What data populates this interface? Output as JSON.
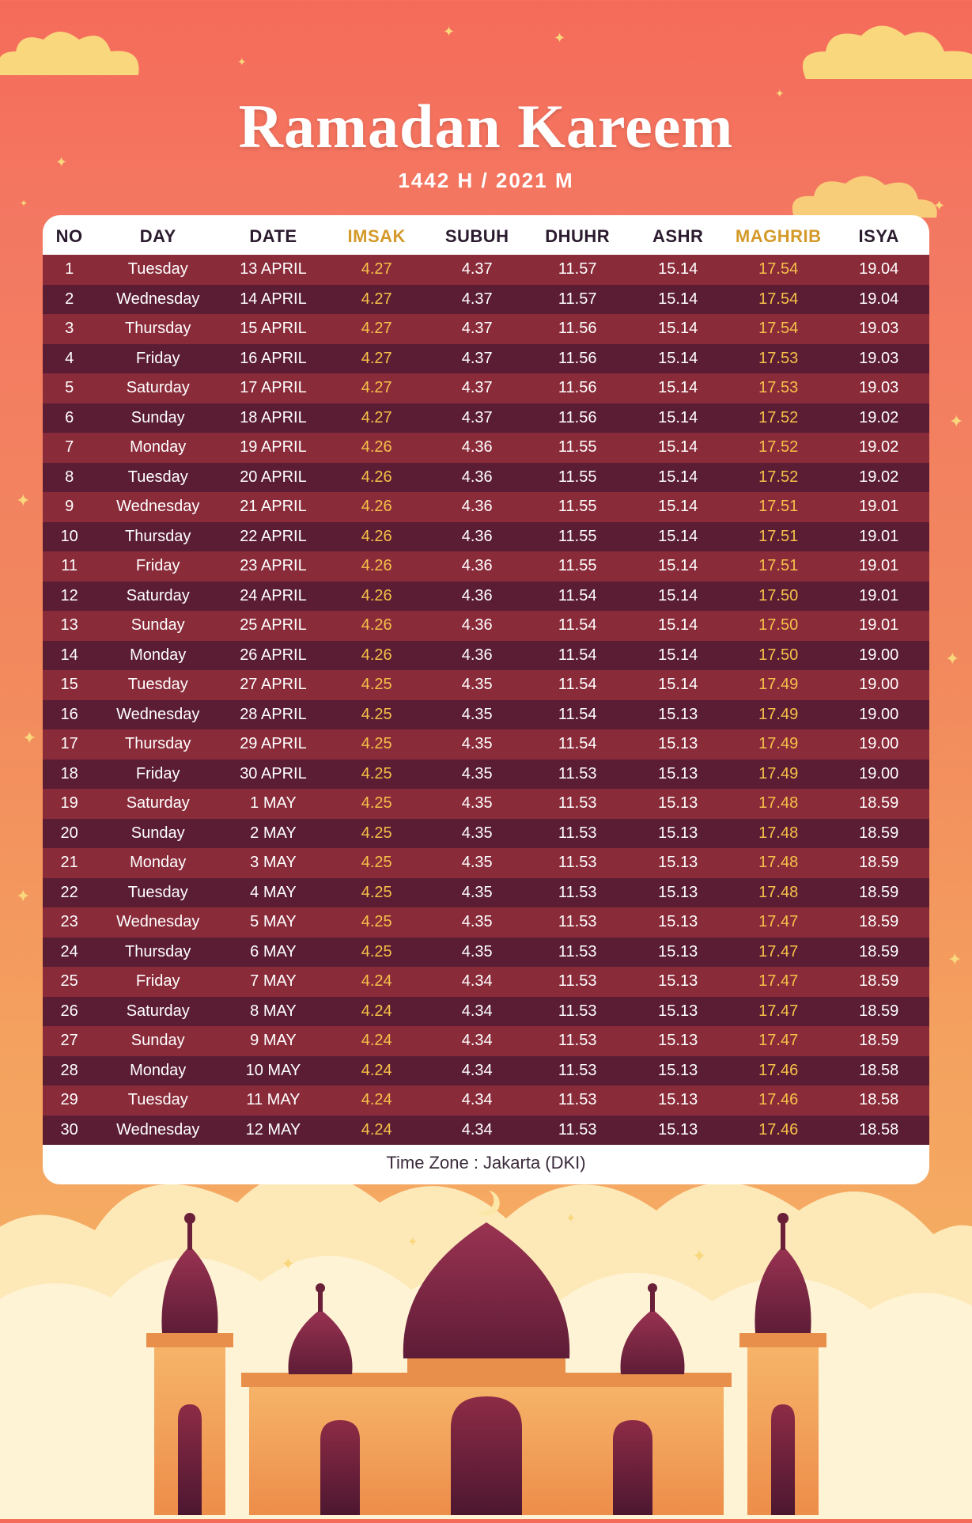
{
  "title": "Ramadan Kareem",
  "subtitle": "1442 H / 2021 M",
  "footer": "Time Zone : Jakarta (DKI)",
  "colors": {
    "bg_top": "#f56b5a",
    "bg_bottom": "#f7b968",
    "star": "#f9d77d",
    "cloud": "#f9d77d",
    "title": "#ffffff",
    "header_text": "#2b1b2e",
    "header_highlight": "#d49a2a",
    "row_odd_bg": "#8a2b3a",
    "row_even_bg": "#5b1d34",
    "cell_text": "#ffffff",
    "cell_highlight": "#f6c049",
    "mosque_wall": "#f29c5a",
    "mosque_dome": "#7a2340"
  },
  "columns": [
    {
      "key": "no",
      "label": "NO",
      "highlight": false,
      "cls": "c-no"
    },
    {
      "key": "day",
      "label": "DAY",
      "highlight": false,
      "cls": "c-day"
    },
    {
      "key": "date",
      "label": "DATE",
      "highlight": false,
      "cls": "c-date"
    },
    {
      "key": "imsak",
      "label": "IMSAK",
      "highlight": true,
      "cls": "c-t"
    },
    {
      "key": "subuh",
      "label": "SUBUH",
      "highlight": false,
      "cls": "c-t"
    },
    {
      "key": "dhuhr",
      "label": "DHUHR",
      "highlight": false,
      "cls": "c-t"
    },
    {
      "key": "ashr",
      "label": "ASHR",
      "highlight": false,
      "cls": "c-t"
    },
    {
      "key": "maghrib",
      "label": "MAGHRIB",
      "highlight": true,
      "cls": "c-t"
    },
    {
      "key": "isya",
      "label": "ISYA",
      "highlight": false,
      "cls": "c-t"
    }
  ],
  "rows": [
    {
      "no": "1",
      "day": "Tuesday",
      "date": "13 APRIL",
      "imsak": "4.27",
      "subuh": "4.37",
      "dhuhr": "11.57",
      "ashr": "15.14",
      "maghrib": "17.54",
      "isya": "19.04"
    },
    {
      "no": "2",
      "day": "Wednesday",
      "date": "14 APRIL",
      "imsak": "4.27",
      "subuh": "4.37",
      "dhuhr": "11.57",
      "ashr": "15.14",
      "maghrib": "17.54",
      "isya": "19.04"
    },
    {
      "no": "3",
      "day": "Thursday",
      "date": "15 APRIL",
      "imsak": "4.27",
      "subuh": "4.37",
      "dhuhr": "11.56",
      "ashr": "15.14",
      "maghrib": "17.54",
      "isya": "19.03"
    },
    {
      "no": "4",
      "day": "Friday",
      "date": "16 APRIL",
      "imsak": "4.27",
      "subuh": "4.37",
      "dhuhr": "11.56",
      "ashr": "15.14",
      "maghrib": "17.53",
      "isya": "19.03"
    },
    {
      "no": "5",
      "day": "Saturday",
      "date": "17 APRIL",
      "imsak": "4.27",
      "subuh": "4.37",
      "dhuhr": "11.56",
      "ashr": "15.14",
      "maghrib": "17.53",
      "isya": "19.03"
    },
    {
      "no": "6",
      "day": "Sunday",
      "date": "18 APRIL",
      "imsak": "4.27",
      "subuh": "4.37",
      "dhuhr": "11.56",
      "ashr": "15.14",
      "maghrib": "17.52",
      "isya": "19.02"
    },
    {
      "no": "7",
      "day": "Monday",
      "date": "19 APRIL",
      "imsak": "4.26",
      "subuh": "4.36",
      "dhuhr": "11.55",
      "ashr": "15.14",
      "maghrib": "17.52",
      "isya": "19.02"
    },
    {
      "no": "8",
      "day": "Tuesday",
      "date": "20 APRIL",
      "imsak": "4.26",
      "subuh": "4.36",
      "dhuhr": "11.55",
      "ashr": "15.14",
      "maghrib": "17.52",
      "isya": "19.02"
    },
    {
      "no": "9",
      "day": "Wednesday",
      "date": "21 APRIL",
      "imsak": "4.26",
      "subuh": "4.36",
      "dhuhr": "11.55",
      "ashr": "15.14",
      "maghrib": "17.51",
      "isya": "19.01"
    },
    {
      "no": "10",
      "day": "Thursday",
      "date": "22 APRIL",
      "imsak": "4.26",
      "subuh": "4.36",
      "dhuhr": "11.55",
      "ashr": "15.14",
      "maghrib": "17.51",
      "isya": "19.01"
    },
    {
      "no": "11",
      "day": "Friday",
      "date": "23 APRIL",
      "imsak": "4.26",
      "subuh": "4.36",
      "dhuhr": "11.55",
      "ashr": "15.14",
      "maghrib": "17.51",
      "isya": "19.01"
    },
    {
      "no": "12",
      "day": "Saturday",
      "date": "24 APRIL",
      "imsak": "4.26",
      "subuh": "4.36",
      "dhuhr": "11.54",
      "ashr": "15.14",
      "maghrib": "17.50",
      "isya": "19.01"
    },
    {
      "no": "13",
      "day": "Sunday",
      "date": "25 APRIL",
      "imsak": "4.26",
      "subuh": "4.36",
      "dhuhr": "11.54",
      "ashr": "15.14",
      "maghrib": "17.50",
      "isya": "19.01"
    },
    {
      "no": "14",
      "day": "Monday",
      "date": "26 APRIL",
      "imsak": "4.26",
      "subuh": "4.36",
      "dhuhr": "11.54",
      "ashr": "15.14",
      "maghrib": "17.50",
      "isya": "19.00"
    },
    {
      "no": "15",
      "day": "Tuesday",
      "date": "27 APRIL",
      "imsak": "4.25",
      "subuh": "4.35",
      "dhuhr": "11.54",
      "ashr": "15.14",
      "maghrib": "17.49",
      "isya": "19.00"
    },
    {
      "no": "16",
      "day": "Wednesday",
      "date": "28 APRIL",
      "imsak": "4.25",
      "subuh": "4.35",
      "dhuhr": "11.54",
      "ashr": "15.13",
      "maghrib": "17.49",
      "isya": "19.00"
    },
    {
      "no": "17",
      "day": "Thursday",
      "date": "29 APRIL",
      "imsak": "4.25",
      "subuh": "4.35",
      "dhuhr": "11.54",
      "ashr": "15.13",
      "maghrib": "17.49",
      "isya": "19.00"
    },
    {
      "no": "18",
      "day": "Friday",
      "date": "30 APRIL",
      "imsak": "4.25",
      "subuh": "4.35",
      "dhuhr": "11.53",
      "ashr": "15.13",
      "maghrib": "17.49",
      "isya": "19.00"
    },
    {
      "no": "19",
      "day": "Saturday",
      "date": "1 MAY",
      "imsak": "4.25",
      "subuh": "4.35",
      "dhuhr": "11.53",
      "ashr": "15.13",
      "maghrib": "17.48",
      "isya": "18.59"
    },
    {
      "no": "20",
      "day": "Sunday",
      "date": "2 MAY",
      "imsak": "4.25",
      "subuh": "4.35",
      "dhuhr": "11.53",
      "ashr": "15.13",
      "maghrib": "17.48",
      "isya": "18.59"
    },
    {
      "no": "21",
      "day": "Monday",
      "date": "3 MAY",
      "imsak": "4.25",
      "subuh": "4.35",
      "dhuhr": "11.53",
      "ashr": "15.13",
      "maghrib": "17.48",
      "isya": "18.59"
    },
    {
      "no": "22",
      "day": "Tuesday",
      "date": "4 MAY",
      "imsak": "4.25",
      "subuh": "4.35",
      "dhuhr": "11.53",
      "ashr": "15.13",
      "maghrib": "17.48",
      "isya": "18.59"
    },
    {
      "no": "23",
      "day": "Wednesday",
      "date": "5 MAY",
      "imsak": "4.25",
      "subuh": "4.35",
      "dhuhr": "11.53",
      "ashr": "15.13",
      "maghrib": "17.47",
      "isya": "18.59"
    },
    {
      "no": "24",
      "day": "Thursday",
      "date": "6 MAY",
      "imsak": "4.25",
      "subuh": "4.35",
      "dhuhr": "11.53",
      "ashr": "15.13",
      "maghrib": "17.47",
      "isya": "18.59"
    },
    {
      "no": "25",
      "day": "Friday",
      "date": "7 MAY",
      "imsak": "4.24",
      "subuh": "4.34",
      "dhuhr": "11.53",
      "ashr": "15.13",
      "maghrib": "17.47",
      "isya": "18.59"
    },
    {
      "no": "26",
      "day": "Saturday",
      "date": "8 MAY",
      "imsak": "4.24",
      "subuh": "4.34",
      "dhuhr": "11.53",
      "ashr": "15.13",
      "maghrib": "17.47",
      "isya": "18.59"
    },
    {
      "no": "27",
      "day": "Sunday",
      "date": "9 MAY",
      "imsak": "4.24",
      "subuh": "4.34",
      "dhuhr": "11.53",
      "ashr": "15.13",
      "maghrib": "17.47",
      "isya": "18.59"
    },
    {
      "no": "28",
      "day": "Monday",
      "date": "10 MAY",
      "imsak": "4.24",
      "subuh": "4.34",
      "dhuhr": "11.53",
      "ashr": "15.13",
      "maghrib": "17.46",
      "isya": "18.58"
    },
    {
      "no": "29",
      "day": "Tuesday",
      "date": "11 MAY",
      "imsak": "4.24",
      "subuh": "4.34",
      "dhuhr": "11.53",
      "ashr": "15.13",
      "maghrib": "17.46",
      "isya": "18.58"
    },
    {
      "no": "30",
      "day": "Wednesday",
      "date": "12 MAY",
      "imsak": "4.24",
      "subuh": "4.34",
      "dhuhr": "11.53",
      "ashr": "15.13",
      "maghrib": "17.46",
      "isya": "18.58"
    }
  ]
}
